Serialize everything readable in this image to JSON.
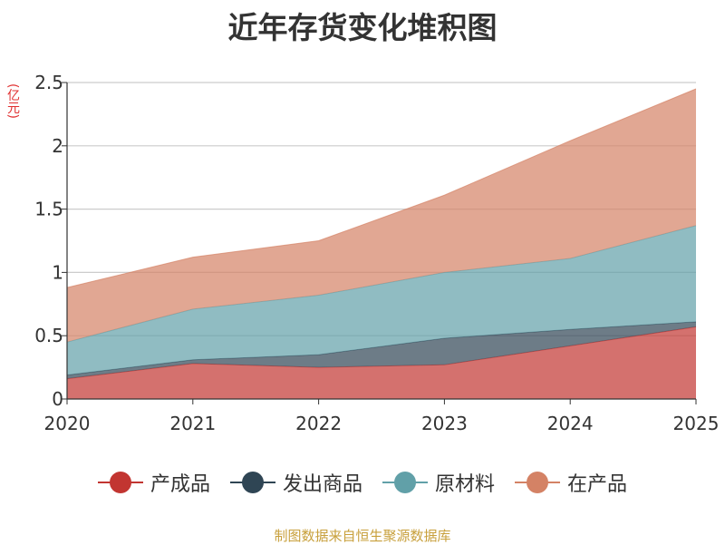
{
  "chart_data": {
    "type": "area",
    "stacked": true,
    "title": "近年存货变化堆积图",
    "ylabel": "(亿元)",
    "xlabel": "",
    "categories": [
      "2020",
      "2021",
      "2022",
      "2023",
      "2024",
      "2025"
    ],
    "ylim": [
      0,
      2.5
    ],
    "yticks": [
      0,
      0.5,
      1,
      1.5,
      2,
      2.5
    ],
    "ytick_labels": [
      "0",
      "0.5",
      "1",
      "1.5",
      "2",
      "2.5"
    ],
    "grid": true,
    "legend_position": "bottom",
    "series": [
      {
        "name": "产成品",
        "color": "#c23531",
        "values": [
          0.16,
          0.28,
          0.25,
          0.27,
          0.42,
          0.57
        ]
      },
      {
        "name": "发出商品",
        "color": "#2f4554",
        "values": [
          0.03,
          0.03,
          0.1,
          0.21,
          0.13,
          0.04
        ]
      },
      {
        "name": "原材料",
        "color": "#61a0a8",
        "values": [
          0.26,
          0.4,
          0.47,
          0.52,
          0.56,
          0.76
        ]
      },
      {
        "name": "在产品",
        "color": "#d48265",
        "values": [
          0.43,
          0.41,
          0.43,
          0.61,
          0.93,
          1.08
        ]
      }
    ]
  },
  "footer": {
    "source": "制图数据来自恒生聚源数据库"
  }
}
